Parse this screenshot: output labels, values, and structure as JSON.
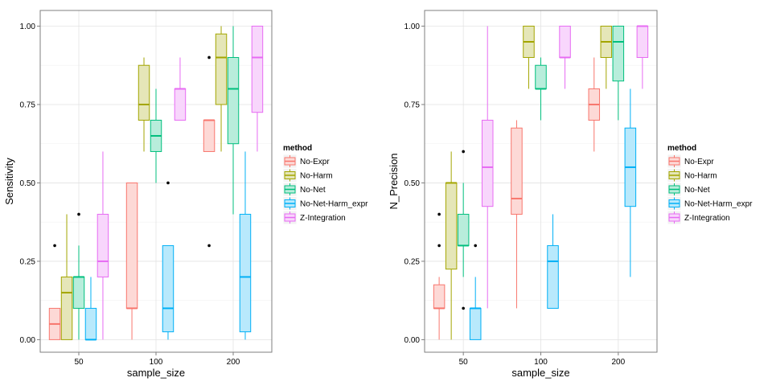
{
  "chart_data": [
    {
      "type": "boxplot",
      "xlabel": "sample_size",
      "ylabel": "Sensitivity",
      "categories": [
        "50",
        "100",
        "200"
      ],
      "ylim": [
        -0.04,
        1.05
      ],
      "yticks": [
        0.0,
        0.25,
        0.5,
        0.75,
        1.0
      ],
      "ytick_labels": [
        "0.00",
        "0.25",
        "0.50",
        "0.75",
        "1.00"
      ],
      "grid": true,
      "legend": {
        "title": "method",
        "placement": "right",
        "entries": [
          "No-Expr",
          "No-Harm",
          "No-Net",
          "No-Net-Harm_expr",
          "Z-Integration"
        ]
      },
      "series": [
        {
          "name": "No-Expr",
          "color": "#F8766D",
          "boxes": [
            {
              "min": 0.0,
              "q1": 0.0,
              "median": 0.05,
              "q3": 0.1,
              "max": 0.1,
              "outliers": [
                0.3
              ]
            },
            {
              "min": 0.0,
              "q1": 0.1,
              "median": 0.1,
              "q3": 0.5,
              "max": 0.5,
              "outliers": []
            },
            {
              "min": 0.6,
              "q1": 0.6,
              "median": 0.7,
              "q3": 0.7,
              "max": 0.7,
              "outliers": [
                0.9,
                0.3
              ]
            }
          ]
        },
        {
          "name": "No-Harm",
          "color": "#A3A500",
          "boxes": [
            {
              "min": 0.0,
              "q1": 0.0,
              "median": 0.15,
              "q3": 0.2,
              "max": 0.4,
              "outliers": []
            },
            {
              "min": 0.6,
              "q1": 0.7,
              "median": 0.75,
              "q3": 0.875,
              "max": 0.9,
              "outliers": []
            },
            {
              "min": 0.6,
              "q1": 0.75,
              "median": 0.9,
              "q3": 0.975,
              "max": 1.0,
              "outliers": []
            }
          ]
        },
        {
          "name": "No-Net",
          "color": "#00BF7D",
          "boxes": [
            {
              "min": 0.0,
              "q1": 0.1,
              "median": 0.2,
              "q3": 0.2,
              "max": 0.3,
              "outliers": [
                0.4
              ]
            },
            {
              "min": 0.5,
              "q1": 0.6,
              "median": 0.65,
              "q3": 0.7,
              "max": 0.8,
              "outliers": []
            },
            {
              "min": 0.4,
              "q1": 0.625,
              "median": 0.8,
              "q3": 0.9,
              "max": 1.0,
              "outliers": []
            }
          ]
        },
        {
          "name": "No-Net-Harm_expr",
          "color": "#00B0F6",
          "boxes": [
            {
              "min": 0.0,
              "q1": 0.0,
              "median": 0.0,
              "q3": 0.1,
              "max": 0.2,
              "outliers": []
            },
            {
              "min": 0.0,
              "q1": 0.025,
              "median": 0.1,
              "q3": 0.3,
              "max": 0.3,
              "outliers": [
                0.5
              ]
            },
            {
              "min": 0.0,
              "q1": 0.025,
              "median": 0.2,
              "q3": 0.4,
              "max": 0.6,
              "outliers": []
            }
          ]
        },
        {
          "name": "Z-Integration",
          "color": "#E76BF3",
          "boxes": [
            {
              "min": 0.0,
              "q1": 0.2,
              "median": 0.25,
              "q3": 0.4,
              "max": 0.6,
              "outliers": []
            },
            {
              "min": 0.7,
              "q1": 0.7,
              "median": 0.8,
              "q3": 0.8,
              "max": 0.9,
              "outliers": []
            },
            {
              "min": 0.6,
              "q1": 0.725,
              "median": 0.9,
              "q3": 1.0,
              "max": 1.0,
              "outliers": []
            }
          ]
        }
      ]
    },
    {
      "type": "boxplot",
      "xlabel": "sample_size",
      "ylabel": "N_Precision",
      "categories": [
        "50",
        "100",
        "200"
      ],
      "ylim": [
        -0.04,
        1.05
      ],
      "yticks": [
        0.0,
        0.25,
        0.5,
        0.75,
        1.0
      ],
      "ytick_labels": [
        "0.00",
        "0.25",
        "0.50",
        "0.75",
        "1.00"
      ],
      "grid": true,
      "legend": {
        "title": "method",
        "placement": "right",
        "entries": [
          "No-Expr",
          "No-Harm",
          "No-Net",
          "No-Net-Harm_expr",
          "Z-Integration"
        ]
      },
      "series": [
        {
          "name": "No-Expr",
          "color": "#F8766D",
          "boxes": [
            {
              "min": 0.0,
              "q1": 0.1,
              "median": 0.1,
              "q3": 0.175,
              "max": 0.2,
              "outliers": [
                0.4,
                0.3
              ]
            },
            {
              "min": 0.1,
              "q1": 0.4,
              "median": 0.45,
              "q3": 0.675,
              "max": 0.7,
              "outliers": []
            },
            {
              "min": 0.6,
              "q1": 0.7,
              "median": 0.75,
              "q3": 0.8,
              "max": 0.9,
              "outliers": []
            }
          ]
        },
        {
          "name": "No-Harm",
          "color": "#A3A500",
          "boxes": [
            {
              "min": 0.0,
              "q1": 0.225,
              "median": 0.5,
              "q3": 0.5,
              "max": 0.6,
              "outliers": []
            },
            {
              "min": 0.8,
              "q1": 0.9,
              "median": 0.95,
              "q3": 1.0,
              "max": 1.0,
              "outliers": []
            },
            {
              "min": 0.8,
              "q1": 0.9,
              "median": 0.95,
              "q3": 1.0,
              "max": 1.0,
              "outliers": []
            }
          ]
        },
        {
          "name": "No-Net",
          "color": "#00BF7D",
          "boxes": [
            {
              "min": 0.2,
              "q1": 0.3,
              "median": 0.3,
              "q3": 0.4,
              "max": 0.5,
              "outliers": [
                0.6,
                0.1
              ]
            },
            {
              "min": 0.7,
              "q1": 0.8,
              "median": 0.8,
              "q3": 0.875,
              "max": 0.9,
              "outliers": []
            },
            {
              "min": 0.7,
              "q1": 0.825,
              "median": 0.95,
              "q3": 1.0,
              "max": 1.0,
              "outliers": []
            }
          ]
        },
        {
          "name": "No-Net-Harm_expr",
          "color": "#00B0F6",
          "boxes": [
            {
              "min": 0.0,
              "q1": 0.0,
              "median": 0.1,
              "q3": 0.1,
              "max": 0.2,
              "outliers": [
                0.3
              ]
            },
            {
              "min": 0.1,
              "q1": 0.1,
              "median": 0.25,
              "q3": 0.3,
              "max": 0.4,
              "outliers": []
            },
            {
              "min": 0.2,
              "q1": 0.425,
              "median": 0.55,
              "q3": 0.675,
              "max": 0.8,
              "outliers": []
            }
          ]
        },
        {
          "name": "Z-Integration",
          "color": "#E76BF3",
          "boxes": [
            {
              "min": 0.1,
              "q1": 0.425,
              "median": 0.55,
              "q3": 0.7,
              "max": 1.0,
              "outliers": []
            },
            {
              "min": 0.8,
              "q1": 0.9,
              "median": 0.9,
              "q3": 1.0,
              "max": 1.0,
              "outliers": []
            },
            {
              "min": 0.8,
              "q1": 0.9,
              "median": 1.0,
              "q3": 1.0,
              "max": 1.0,
              "outliers": []
            }
          ]
        }
      ]
    }
  ]
}
